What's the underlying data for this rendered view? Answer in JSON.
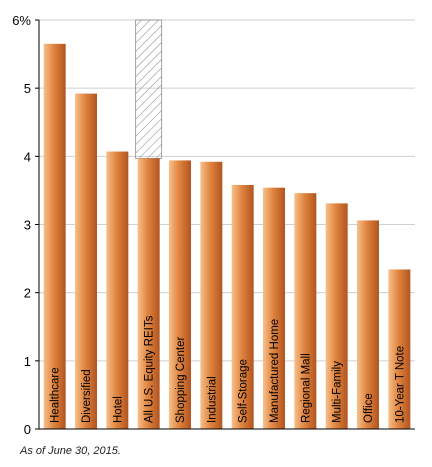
{
  "chart_data": {
    "type": "bar",
    "categories": [
      "Healthcare",
      "Diversified",
      "Hotel",
      "All U.S. Equity REITs",
      "Shopping Center",
      "Industrial",
      "Self-Storage",
      "Manufactured Home",
      "Regional Mall",
      "Multi-Family",
      "Office",
      "10-Year T Note"
    ],
    "values": [
      5.65,
      4.92,
      4.07,
      3.97,
      3.94,
      3.92,
      3.58,
      3.54,
      3.46,
      3.31,
      3.06,
      2.34
    ],
    "highlight_category": "All U.S. Equity REITs",
    "ylim": [
      0,
      6
    ],
    "yticks": [
      0,
      1,
      2,
      3,
      4,
      5,
      6
    ],
    "ytick_labels": [
      "0",
      "1",
      "2",
      "3",
      "4",
      "5",
      "6%"
    ],
    "title": "",
    "xlabel": "",
    "ylabel": "",
    "grid": true,
    "legend": "none"
  },
  "footnote": "As of June 30, 2015.",
  "colors": {
    "bar_light": "#f7c08a",
    "bar_mid": "#e0853f",
    "bar_dark": "#b25420",
    "hatch": "#8a8a8a",
    "grid": "#cfcfcf",
    "axis": "#000000",
    "bar_text": "#000000"
  }
}
